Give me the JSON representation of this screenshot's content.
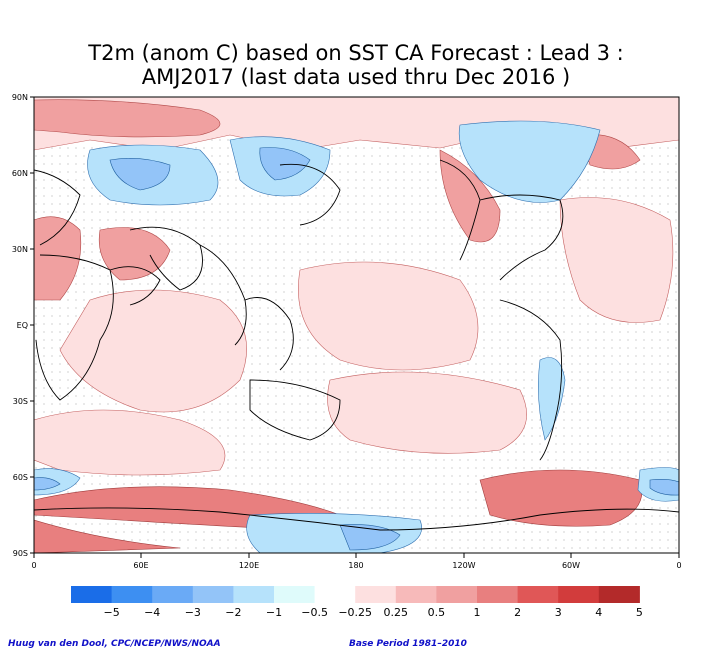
{
  "title": {
    "line1": "T2m (anom C) based on SST CA Forecast : Lead 3 :",
    "line2": "AMJ2017 (last data used thru Dec 2016 )"
  },
  "axes": {
    "lat_labels": [
      "90N",
      "60N",
      "30N",
      "EQ",
      "30S",
      "60S",
      "90S"
    ],
    "lon_labels": [
      "0",
      "60E",
      "120E",
      "180",
      "120W",
      "60W",
      "0"
    ]
  },
  "colorbar": {
    "colors": [
      "#1a6de8",
      "#3d8ff2",
      "#6aaaf6",
      "#93c4f8",
      "#b6e2fb",
      "#dffbfb",
      "#ffffff",
      "#fde0e0",
      "#f7baba",
      "#f0a0a0",
      "#e87f7f",
      "#e05757",
      "#d23c3c",
      "#b32a2a"
    ],
    "labels": [
      "−5",
      "−4",
      "−3",
      "−2",
      "−1",
      "−0.5",
      "−0.25",
      "0.25",
      "0.5",
      "1",
      "2",
      "3",
      "4",
      "5"
    ]
  },
  "credits": {
    "left": "Huug van den Dool, CPC/NCEP/NWS/NOAA",
    "right": "Base Period 1981–2010"
  }
}
